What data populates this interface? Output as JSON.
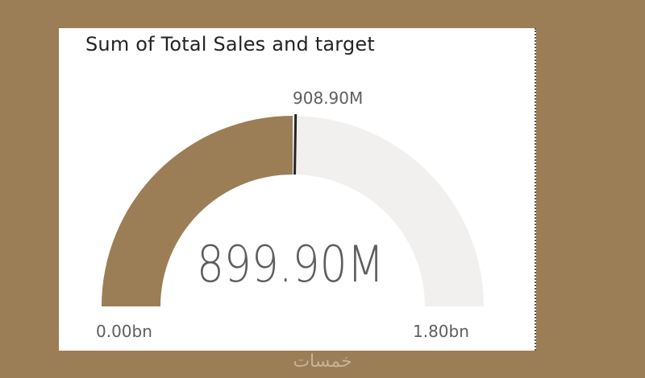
{
  "visual": {
    "title": "Sum of Total Sales and target"
  },
  "chart_data": {
    "type": "gauge",
    "value": 899.9,
    "value_label": "899.90M",
    "target": 908.9,
    "target_label": "908.90M",
    "min": 0,
    "min_label": "0.00bn",
    "max": 1800,
    "max_label": "1.80bn",
    "unit": "M",
    "colors": {
      "fill": "#9b7e55",
      "track": "#f1f0ef",
      "target_line": "#252423"
    }
  },
  "theme": {
    "page_background": "#9b7e55",
    "card_background": "#ffffff"
  },
  "watermark": {
    "text": "خمسات"
  }
}
